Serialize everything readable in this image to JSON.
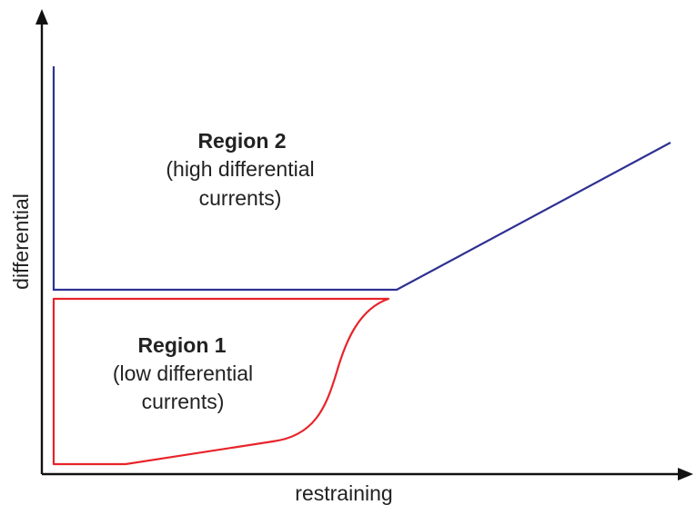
{
  "axes": {
    "x_label": "restraining",
    "y_label": "differential"
  },
  "regions": [
    {
      "title": "Region 1",
      "desc_line1": "(low differential",
      "desc_line2": "currents)"
    },
    {
      "title": "Region 2",
      "desc_line1": "(high differential",
      "desc_line2": "currents)"
    }
  ],
  "colors": {
    "axis": "#111111",
    "region1_boundary": "#e8232a",
    "region2_boundary": "#2e3192"
  }
}
